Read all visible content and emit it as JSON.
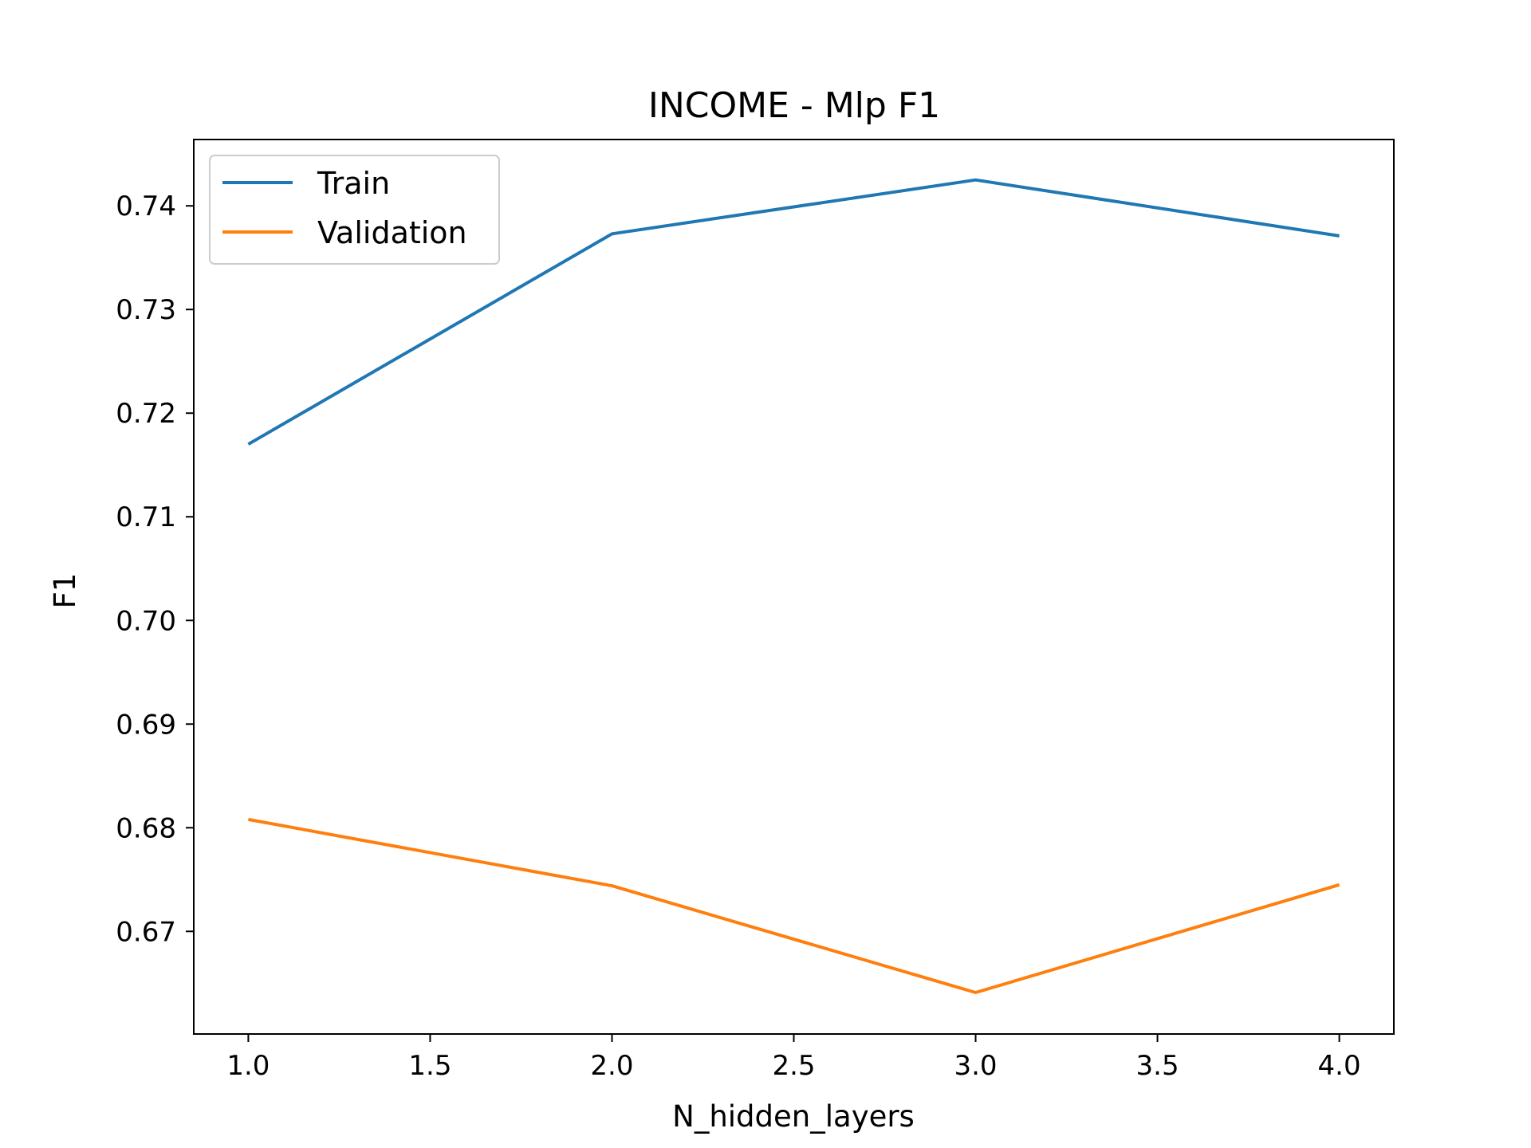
{
  "chart_data": {
    "type": "line",
    "title": "INCOME - Mlp F1",
    "xlabel": "N_hidden_layers",
    "ylabel": "F1",
    "x": [
      1.0,
      2.0,
      3.0,
      4.0
    ],
    "xlim": [
      0.85,
      4.15
    ],
    "ylim": [
      0.6601,
      0.7464
    ],
    "xticks": [
      1.0,
      1.5,
      2.0,
      2.5,
      3.0,
      3.5,
      4.0
    ],
    "xtick_labels": [
      "1.0",
      "1.5",
      "2.0",
      "2.5",
      "3.0",
      "3.5",
      "4.0"
    ],
    "yticks": [
      0.67,
      0.68,
      0.69,
      0.7,
      0.71,
      0.72,
      0.73,
      0.74
    ],
    "ytick_labels": [
      "0.67",
      "0.68",
      "0.69",
      "0.70",
      "0.71",
      "0.72",
      "0.73",
      "0.74"
    ],
    "grid": false,
    "legend_position": "top-left",
    "series": [
      {
        "name": "Train",
        "color": "#1f77b4",
        "values": [
          0.717,
          0.7373,
          0.7425,
          0.7371
        ]
      },
      {
        "name": "Validation",
        "color": "#ff7f0e",
        "values": [
          0.6808,
          0.6744,
          0.6641,
          0.6745
        ]
      }
    ]
  }
}
